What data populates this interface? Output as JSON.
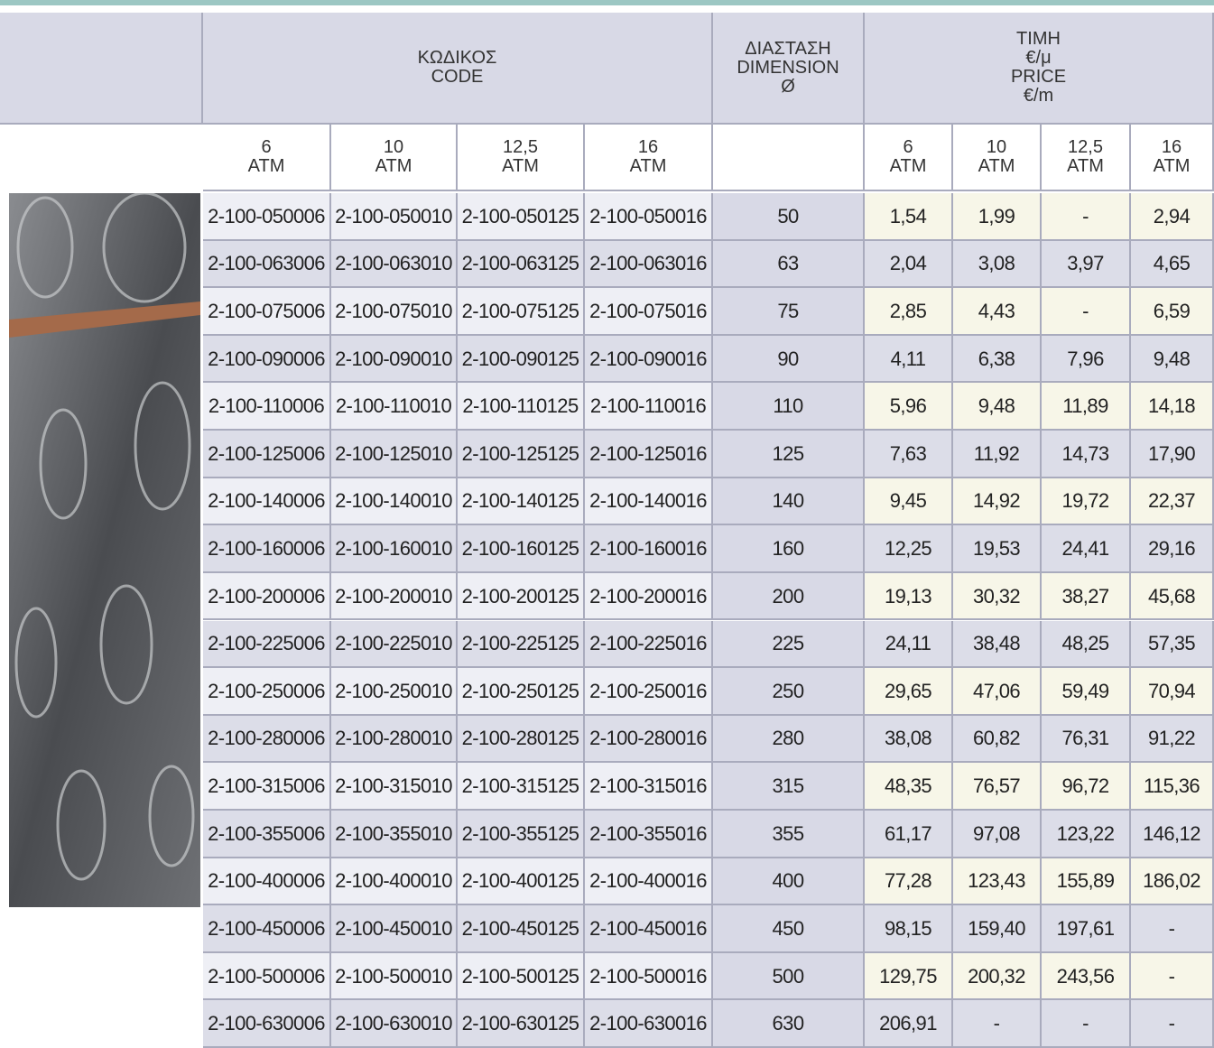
{
  "header": {
    "code": [
      "ΚΩΔΙΚΟΣ",
      "CODE"
    ],
    "dimension": [
      "ΔΙΑΣΤΑΣΗ",
      "DIMENSION",
      "Ø"
    ],
    "price": [
      "ΤΙΜΗ",
      "€/μ",
      "PRICE",
      "€/m"
    ]
  },
  "subheaders": {
    "code": [
      [
        "6",
        "ATM"
      ],
      [
        "10",
        "ATM"
      ],
      [
        "12,5",
        "ATM"
      ],
      [
        "16",
        "ATM"
      ]
    ],
    "price": [
      [
        "6",
        "ATM"
      ],
      [
        "10",
        "ATM"
      ],
      [
        "12,5",
        "ATM"
      ],
      [
        "16",
        "ATM"
      ]
    ]
  },
  "table": {
    "rows": [
      [
        "2-100-050006",
        "2-100-050010",
        "2-100-050125",
        "2-100-050016",
        "50",
        "1,54",
        "1,99",
        "-",
        "2,94"
      ],
      [
        "2-100-063006",
        "2-100-063010",
        "2-100-063125",
        "2-100-063016",
        "63",
        "2,04",
        "3,08",
        "3,97",
        "4,65"
      ],
      [
        "2-100-075006",
        "2-100-075010",
        "2-100-075125",
        "2-100-075016",
        "75",
        "2,85",
        "4,43",
        "-",
        "6,59"
      ],
      [
        "2-100-090006",
        "2-100-090010",
        "2-100-090125",
        "2-100-090016",
        "90",
        "4,11",
        "6,38",
        "7,96",
        "9,48"
      ],
      [
        "2-100-110006",
        "2-100-110010",
        "2-100-110125",
        "2-100-110016",
        "110",
        "5,96",
        "9,48",
        "11,89",
        "14,18"
      ],
      [
        "2-100-125006",
        "2-100-125010",
        "2-100-125125",
        "2-100-125016",
        "125",
        "7,63",
        "11,92",
        "14,73",
        "17,90"
      ],
      [
        "2-100-140006",
        "2-100-140010",
        "2-100-140125",
        "2-100-140016",
        "140",
        "9,45",
        "14,92",
        "19,72",
        "22,37"
      ],
      [
        "2-100-160006",
        "2-100-160010",
        "2-100-160125",
        "2-100-160016",
        "160",
        "12,25",
        "19,53",
        "24,41",
        "29,16"
      ],
      [
        "2-100-200006",
        "2-100-200010",
        "2-100-200125",
        "2-100-200016",
        "200",
        "19,13",
        "30,32",
        "38,27",
        "45,68"
      ],
      [
        "2-100-225006",
        "2-100-225010",
        "2-100-225125",
        "2-100-225016",
        "225",
        "24,11",
        "38,48",
        "48,25",
        "57,35"
      ],
      [
        "2-100-250006",
        "2-100-250010",
        "2-100-250125",
        "2-100-250016",
        "250",
        "29,65",
        "47,06",
        "59,49",
        "70,94"
      ],
      [
        "2-100-280006",
        "2-100-280010",
        "2-100-280125",
        "2-100-280016",
        "280",
        "38,08",
        "60,82",
        "76,31",
        "91,22"
      ],
      [
        "2-100-315006",
        "2-100-315010",
        "2-100-315125",
        "2-100-315016",
        "315",
        "48,35",
        "76,57",
        "96,72",
        "115,36"
      ],
      [
        "2-100-355006",
        "2-100-355010",
        "2-100-355125",
        "2-100-355016",
        "355",
        "61,17",
        "97,08",
        "123,22",
        "146,12"
      ],
      [
        "2-100-400006",
        "2-100-400010",
        "2-100-400125",
        "2-100-400016",
        "400",
        "77,28",
        "123,43",
        "155,89",
        "186,02"
      ],
      [
        "2-100-450006",
        "2-100-450010",
        "2-100-450125",
        "2-100-450016",
        "450",
        "98,15",
        "159,40",
        "197,61",
        "-"
      ],
      [
        "2-100-500006",
        "2-100-500010",
        "2-100-500125",
        "2-100-500016",
        "500",
        "129,75",
        "200,32",
        "243,56",
        "-"
      ],
      [
        "2-100-630006",
        "2-100-630010",
        "2-100-630125",
        "2-100-630016",
        "630",
        "206,91",
        "-",
        "-",
        "-"
      ]
    ]
  }
}
